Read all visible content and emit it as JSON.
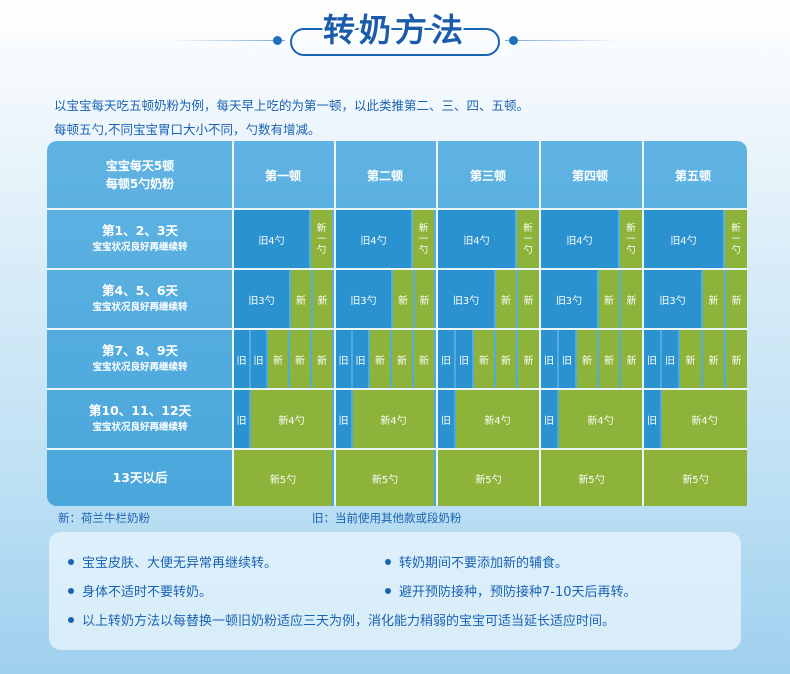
{
  "title": "转奶方法",
  "intro": {
    "line1": "以宝宝每天吃五顿奶粉为例，每天早上吃的为第一顿，以此类推第二、三、四、五顿。",
    "line2": "每顿五勺,不同宝宝胃口大小不同，勺数有增减。"
  },
  "table": {
    "corner_line1": "宝宝每天5顿",
    "corner_line2": "每顿5勺奶粉",
    "columns": [
      "第一顿",
      "第二顿",
      "第三顿",
      "第四顿",
      "第五顿"
    ],
    "rows": [
      {
        "label": "第1、2、3天",
        "sub": "宝宝状况良好再继续转",
        "old_label": "旧4勺",
        "new_label": "新一勺"
      },
      {
        "label": "第4、5、6天",
        "sub": "宝宝状况良好再继续转",
        "old_label": "旧3勺",
        "new_label": "新"
      },
      {
        "label": "第7、8、9天",
        "sub": "宝宝状况良好再继续转",
        "old_label": "旧",
        "new_label": "新"
      },
      {
        "label": "第10、11、12天",
        "sub": "宝宝状况良好再继续转",
        "old_label": "旧",
        "new_label": "新4勺"
      },
      {
        "label": "13天以后",
        "sub": "",
        "old_label": "",
        "new_label": "新5勺"
      }
    ]
  },
  "legend": {
    "new": "新：荷兰牛栏奶粉",
    "old": "旧：当前使用其他款或段奶粉"
  },
  "notes": [
    "宝宝皮肤、大便无异常再继续转。",
    "转奶期间不要添加新的辅食。",
    "身体不适时不要转奶。",
    "避开预防接种，预防接种7-10天后再转。",
    "以上转奶方法以每替换一顿旧奶粉适应三天为例，消化能力稍弱的宝宝可适当延长适应时间。"
  ],
  "colors": {
    "title": "#1a5cab",
    "text": "#1a62b2",
    "table_bg": "#4aa6db",
    "old_block": "#2a92cf",
    "new_block": "#8db33a"
  }
}
